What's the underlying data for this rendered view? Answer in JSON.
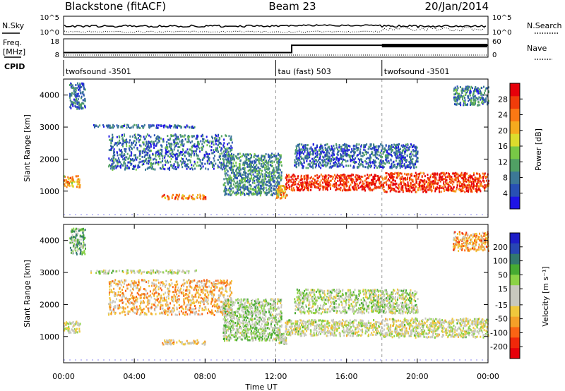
{
  "header": {
    "station": "Blackstone (fitACF)",
    "beam": "Beam 23",
    "date": "20/Jan/2014"
  },
  "summary": {
    "nsky_label": "N.Sky",
    "nsearch_label": "N.Search",
    "nsky_ticks": [
      "10^5",
      "10^0"
    ],
    "freq_label_top": "Freq.",
    "freq_label_unit": "[MHz]",
    "freq_ticks": [
      "18",
      "8"
    ],
    "nave_label": "Nave",
    "nave_ticks": [
      "60",
      "0"
    ],
    "cpid_label": "CPID",
    "programs": [
      {
        "name": "twofsound -3501",
        "start": 0
      },
      {
        "name": "tau (fast) 503",
        "start": 12.0
      },
      {
        "name": "twofsound -3501",
        "start": 18.0
      }
    ]
  },
  "axes": {
    "xlabel": "Time UT",
    "xticks": [
      "00:00",
      "04:00",
      "08:00",
      "12:00",
      "16:00",
      "20:00",
      "00:00"
    ],
    "xlim_hours": [
      0,
      24
    ],
    "ylabel": "Slant Range [km]",
    "yticks": [
      1000,
      2000,
      3000,
      4000
    ],
    "ylim_km": [
      180,
      4500
    ]
  },
  "colorbars": {
    "power": {
      "label": "Power [dB]",
      "ticks": [
        "4",
        "8",
        "12",
        "16",
        "20",
        "24",
        "28"
      ],
      "colors": [
        "#1e14e6",
        "#2850b4",
        "#3c7896",
        "#50a064",
        "#78c846",
        "#dcdc2d",
        "#f5aa1e",
        "#fa7814",
        "#f03c0a",
        "#e6000a"
      ]
    },
    "velocity": {
      "label": "Velocity [m s⁻¹]",
      "ticks": [
        "200",
        "100",
        "50",
        "15",
        "-15",
        "-50",
        "-100",
        "-200"
      ],
      "colors": [
        "#1e1ec8",
        "#2846b4",
        "#32786e",
        "#46aa32",
        "#8cd246",
        "#c8c8be",
        "#c8c8be",
        "#f0c83c",
        "#f5a028",
        "#fa6414",
        "#f0280a",
        "#e6000a"
      ]
    }
  },
  "chart_data": {
    "type": "heatmap",
    "title": "Blackstone (fitACF)  Beam 23  20/Jan/2014",
    "xlabel": "Time UT",
    "ylabel": "Slant Range [km]",
    "xlim": [
      0,
      24
    ],
    "ylim": [
      180,
      4500
    ],
    "panels": [
      {
        "name": "Power",
        "units": "dB",
        "value_range": [
          0,
          30
        ],
        "regions": [
          {
            "t": [
              0.0,
              0.9
            ],
            "range": [
              1150,
              1500
            ],
            "value": 20
          },
          {
            "t": [
              0.3,
              1.2
            ],
            "range": [
              3600,
              4400
            ],
            "value": 6
          },
          {
            "t": [
              1.5,
              7.5
            ],
            "range": [
              3000,
              3100
            ],
            "value": 6
          },
          {
            "t": [
              2.5,
              9.5
            ],
            "range": [
              1700,
              2800
            ],
            "value": 7
          },
          {
            "t": [
              5.5,
              8.0
            ],
            "range": [
              780,
              920
            ],
            "value": 22
          },
          {
            "t": [
              9.0,
              12.3
            ],
            "range": [
              900,
              2200
            ],
            "value": 9
          },
          {
            "t": [
              12.0,
              12.6
            ],
            "range": [
              800,
              1200
            ],
            "value": 20
          },
          {
            "t": [
              12.5,
              18.0
            ],
            "range": [
              1050,
              1550
            ],
            "value": 27
          },
          {
            "t": [
              18.0,
              24.0
            ],
            "range": [
              1000,
              1600
            ],
            "value": 26
          },
          {
            "t": [
              13.0,
              20.0
            ],
            "range": [
              1750,
              2500
            ],
            "value": 6
          },
          {
            "t": [
              22.0,
              24.0
            ],
            "range": [
              3700,
              4300
            ],
            "value": 8
          }
        ]
      },
      {
        "name": "Velocity",
        "units": "m s-1",
        "value_range": [
          -200,
          200
        ],
        "regions": [
          {
            "t": [
              0.0,
              0.9
            ],
            "range": [
              1150,
              1500
            ],
            "value": 0
          },
          {
            "t": [
              0.3,
              1.2
            ],
            "range": [
              3600,
              4400
            ],
            "value": 60
          },
          {
            "t": [
              1.5,
              7.5
            ],
            "range": [
              3000,
              3100
            ],
            "value": 20
          },
          {
            "t": [
              2.5,
              9.5
            ],
            "range": [
              1700,
              2800
            ],
            "value": -60
          },
          {
            "t": [
              5.5,
              8.0
            ],
            "range": [
              780,
              920
            ],
            "value": -40
          },
          {
            "t": [
              9.0,
              12.3
            ],
            "range": [
              900,
              2200
            ],
            "value": 30
          },
          {
            "t": [
              12.0,
              12.6
            ],
            "range": [
              800,
              1200
            ],
            "value": 30
          },
          {
            "t": [
              12.5,
              18.0
            ],
            "range": [
              1050,
              1550
            ],
            "value": 0
          },
          {
            "t": [
              18.0,
              24.0
            ],
            "range": [
              1000,
              1600
            ],
            "value": 0
          },
          {
            "t": [
              13.0,
              20.0
            ],
            "range": [
              1750,
              2500
            ],
            "value": 20
          },
          {
            "t": [
              22.0,
              24.0
            ],
            "range": [
              3700,
              4300
            ],
            "value": -80
          }
        ]
      }
    ],
    "frequency_mhz": [
      {
        "t": [
          0,
          12.9
        ],
        "value": 10.5
      },
      {
        "t": [
          12.9,
          18.0
        ],
        "value": 14.5
      },
      {
        "t": [
          18.0,
          24.0
        ],
        "value": 14.5
      }
    ],
    "grid": false
  }
}
